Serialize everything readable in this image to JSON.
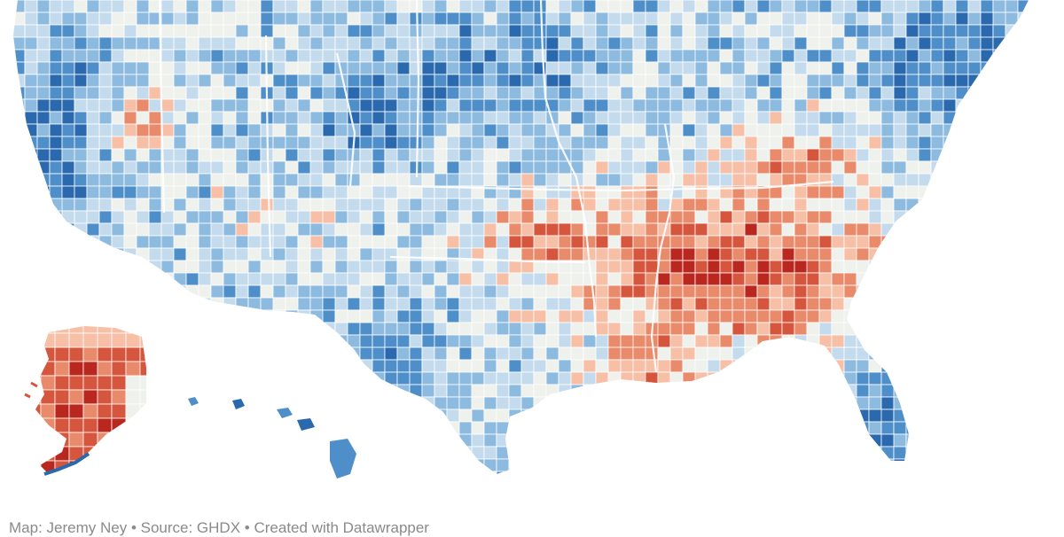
{
  "map": {
    "colors": {
      "red_dark": "#b9271f",
      "red": "#d5553d",
      "red_mid": "#e98a6a",
      "red_light": "#f6bfa6",
      "neutral": "#eef1ec",
      "blue_light": "#c4dbee",
      "blue_mid": "#8dbadf",
      "blue": "#4f8fc9",
      "blue_dark": "#2a69ae",
      "border": "#ffffff",
      "background": "#ffffff"
    },
    "regions": [
      "contiguous-us",
      "alaska",
      "hawaii"
    ]
  },
  "credit": {
    "author": "Map: Jeremy Ney",
    "separator": "•",
    "source": "Source: GHDX",
    "tool": "Created with Datawrapper"
  }
}
